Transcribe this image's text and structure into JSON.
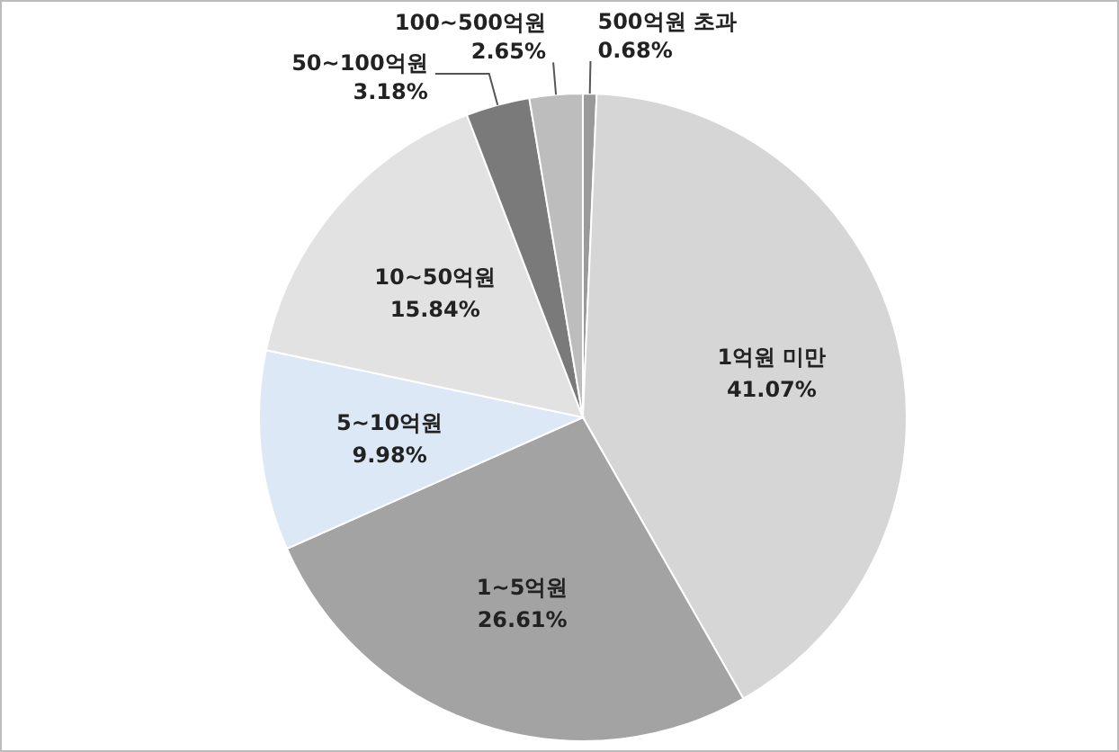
{
  "chart_data": {
    "type": "pie",
    "categories": [
      "500억원 초과",
      "1억원 미만",
      "1~5억원",
      "5~10억원",
      "10~50억원",
      "50~100억원",
      "100~500억원"
    ],
    "values": [
      0.68,
      41.07,
      26.61,
      9.98,
      15.84,
      3.18,
      2.65
    ],
    "value_labels": [
      "0.68%",
      "41.07%",
      "26.61%",
      "9.98%",
      "15.84%",
      "3.18%",
      "2.65%"
    ],
    "colors": [
      "#9a9a9a",
      "#d6d6d6",
      "#a3a3a3",
      "#dce8f5",
      "#e2e2e2",
      "#7a7a7a",
      "#bdbdbd"
    ],
    "legend": false
  }
}
